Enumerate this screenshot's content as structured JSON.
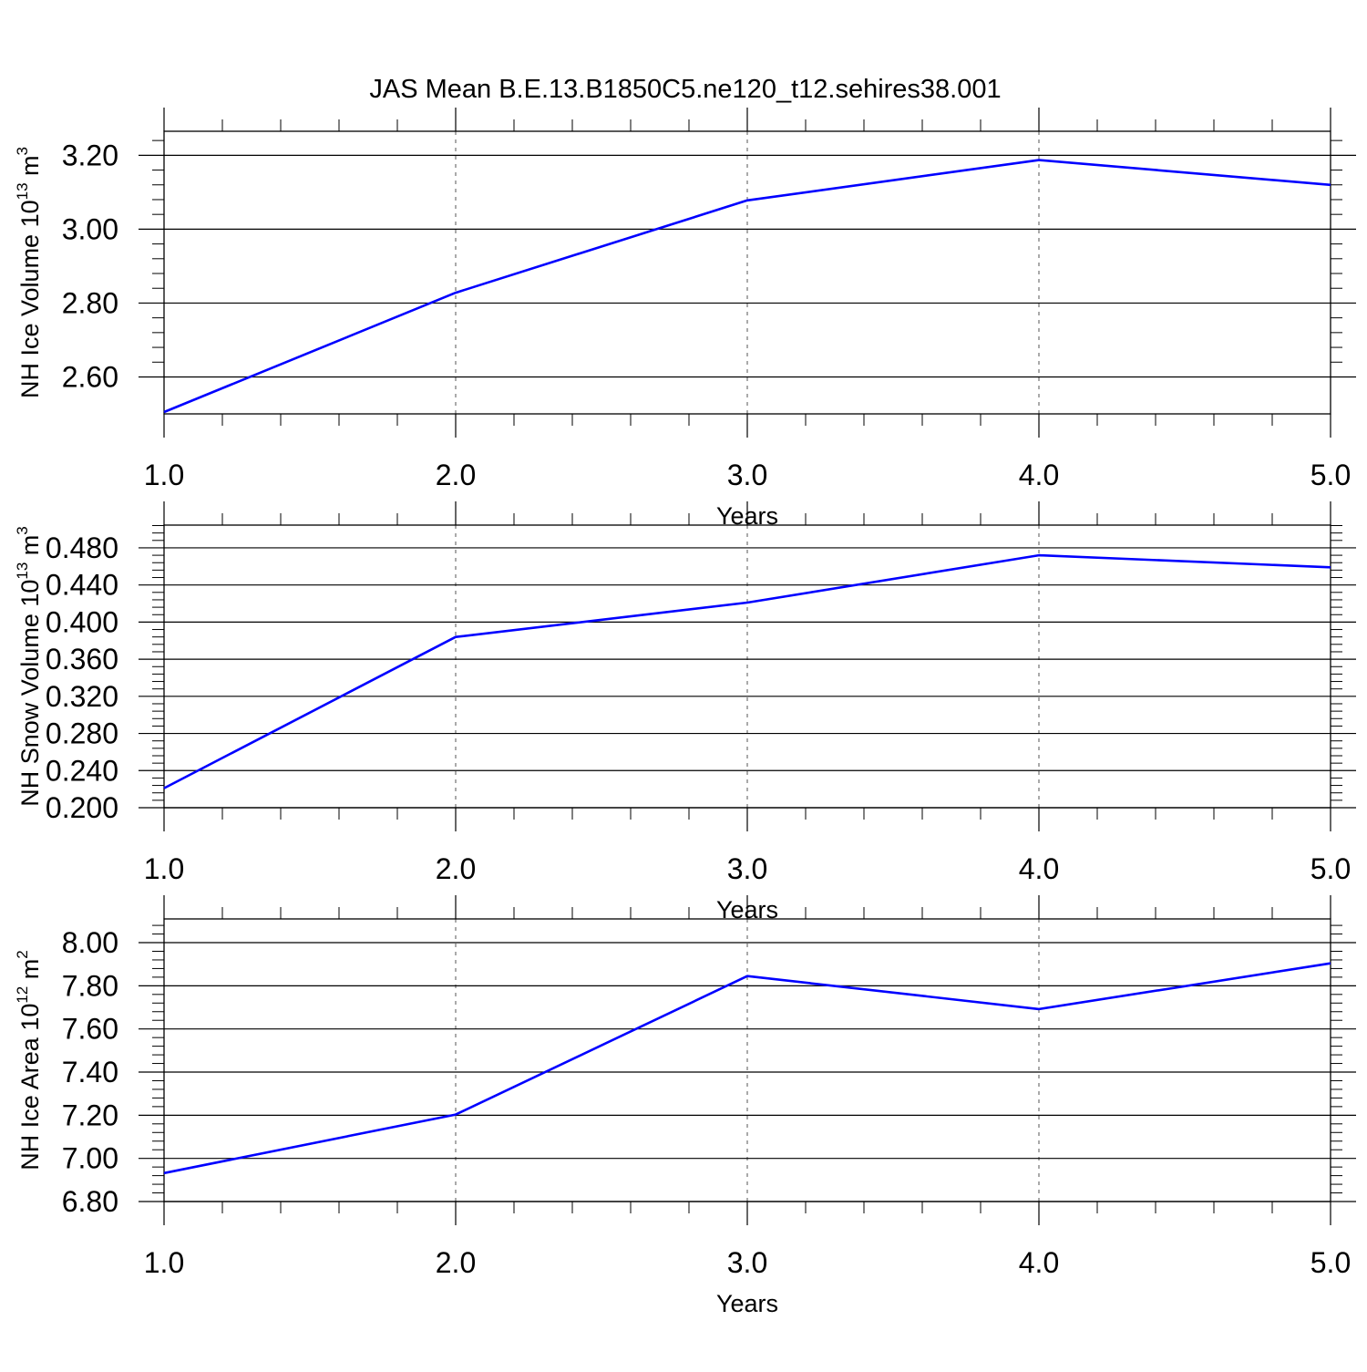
{
  "title": "JAS Mean B.E.13.B1850C5.ne120_t12.sehires38.001",
  "colors": {
    "line": "#0000ff",
    "axis": "#000000",
    "grid": "#555555"
  },
  "chart_data": [
    {
      "type": "line",
      "xlabel": "Years",
      "ylabel": {
        "base": "NH Ice Volume 10",
        "exp": "13",
        "unit": " m",
        "unit_exp": "3"
      },
      "xlim": [
        1.0,
        5.0
      ],
      "ylim": [
        2.5,
        3.265
      ],
      "xticks": [
        1.0,
        2.0,
        3.0,
        4.0,
        5.0
      ],
      "xtick_labels": [
        "1.0",
        "2.0",
        "3.0",
        "4.0",
        "5.0"
      ],
      "yticks": [
        2.6,
        2.8,
        3.0,
        3.2
      ],
      "ytick_labels": [
        "2.60",
        "2.80",
        "3.00",
        "3.20"
      ],
      "grid": "vertical dashed at major x ticks",
      "series": [
        {
          "x": [
            1.0,
            2.0,
            3.0,
            4.0,
            5.0
          ],
          "y": [
            2.505,
            2.828,
            3.078,
            3.187,
            3.12
          ]
        }
      ]
    },
    {
      "type": "line",
      "xlabel": "Years",
      "ylabel": {
        "base": "NH Snow Volume 10",
        "exp": "13",
        "unit": " m",
        "unit_exp": "3"
      },
      "xlim": [
        1.0,
        5.0
      ],
      "ylim": [
        0.2,
        0.5045
      ],
      "xticks": [
        1.0,
        2.0,
        3.0,
        4.0,
        5.0
      ],
      "xtick_labels": [
        "1.0",
        "2.0",
        "3.0",
        "4.0",
        "5.0"
      ],
      "yticks": [
        0.2,
        0.24,
        0.28,
        0.32,
        0.36,
        0.4,
        0.44,
        0.48
      ],
      "ytick_labels": [
        "0.200",
        "0.240",
        "0.280",
        "0.320",
        "0.360",
        "0.400",
        "0.440",
        "0.480"
      ],
      "grid": "vertical dashed at major x ticks",
      "series": [
        {
          "x": [
            1.0,
            2.0,
            3.0,
            4.0,
            5.0
          ],
          "y": [
            0.221,
            0.384,
            0.421,
            0.472,
            0.459
          ]
        }
      ]
    },
    {
      "type": "line",
      "xlabel": "Years",
      "ylabel": {
        "base": "NH Ice Area 10",
        "exp": "12",
        "unit": " m",
        "unit_exp": "2"
      },
      "xlim": [
        1.0,
        5.0
      ],
      "ylim": [
        6.8,
        8.11
      ],
      "xticks": [
        1.0,
        2.0,
        3.0,
        4.0,
        5.0
      ],
      "xtick_labels": [
        "1.0",
        "2.0",
        "3.0",
        "4.0",
        "5.0"
      ],
      "yticks": [
        6.8,
        7.0,
        7.2,
        7.4,
        7.6,
        7.8,
        8.0
      ],
      "ytick_labels": [
        "6.80",
        "7.00",
        "7.20",
        "7.40",
        "7.60",
        "7.80",
        "8.00"
      ],
      "grid": "vertical dashed at major x ticks",
      "series": [
        {
          "x": [
            1.0,
            2.0,
            3.0,
            4.0,
            5.0
          ],
          "y": [
            6.932,
            7.203,
            7.845,
            7.692,
            7.904
          ]
        }
      ]
    }
  ]
}
